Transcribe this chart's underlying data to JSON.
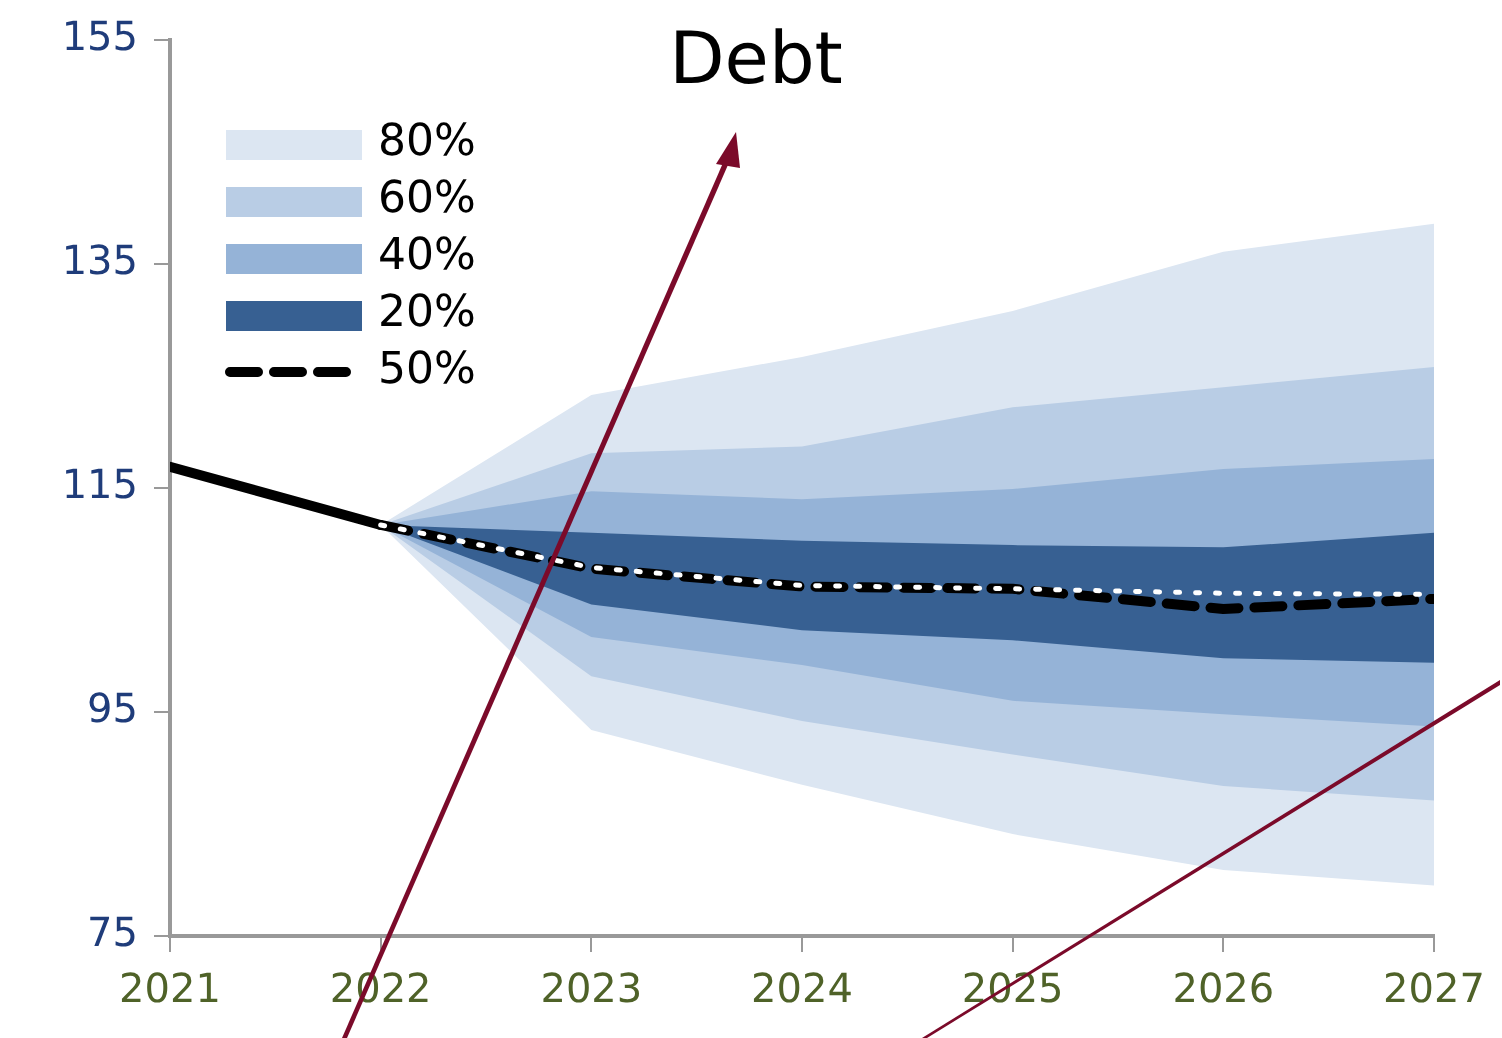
{
  "chart_data": {
    "type": "line",
    "title": "Debt",
    "xlim": [
      2021,
      2027
    ],
    "xticks": [
      2021,
      2022,
      2023,
      2024,
      2025,
      2026,
      2027
    ],
    "ylim": [
      75,
      155
    ],
    "yticks": [
      75,
      95,
      115,
      135,
      155
    ],
    "grid": false,
    "legend": "top left",
    "series": [
      {
        "name": "80%",
        "type": "area",
        "color": "#dce6f2",
        "x": [
          2022,
          2023,
          2024,
          2025,
          2026,
          2027
        ],
        "values": [
          null,
          null,
          null,
          null,
          null,
          null
        ],
        "lower": [
          111.7,
          93.4,
          88.5,
          84.1,
          80.9,
          79.5
        ],
        "upper": [
          111.7,
          123.3,
          126.7,
          130.8,
          136.1,
          138.6
        ]
      },
      {
        "name": "60%",
        "type": "area",
        "color": "#b9cde5",
        "x": [
          2022,
          2023,
          2024,
          2025,
          2026,
          2027
        ],
        "values": [
          null,
          null,
          null,
          null,
          null,
          null
        ],
        "lower": [
          111.7,
          98.2,
          94.2,
          91.2,
          88.4,
          87.1
        ],
        "upper": [
          111.7,
          118.1,
          118.7,
          122.2,
          124.0,
          125.8
        ]
      },
      {
        "name": "40%",
        "type": "area",
        "color": "#95b3d7",
        "x": [
          2022,
          2023,
          2024,
          2025,
          2026,
          2027
        ],
        "values": [
          null,
          null,
          null,
          null,
          null,
          null
        ],
        "lower": [
          111.7,
          101.7,
          99.2,
          96.0,
          94.8,
          93.7
        ],
        "upper": [
          111.7,
          114.7,
          114.0,
          114.9,
          116.7,
          117.6
        ]
      },
      {
        "name": "20%",
        "type": "area",
        "color": "#376092",
        "x": [
          2022,
          2023,
          2024,
          2025,
          2026,
          2027
        ],
        "values": [
          null,
          null,
          null,
          null,
          null,
          null
        ],
        "lower": [
          111.7,
          104.6,
          102.3,
          101.4,
          99.8,
          99.4
        ],
        "upper": [
          111.7,
          111.0,
          110.3,
          109.9,
          109.7,
          111.0
        ]
      },
      {
        "color": "#000000",
        "line_style": "solid",
        "x": [
          2021,
          2022
        ],
        "values": [
          116.9,
          111.7
        ]
      },
      {
        "name": "50%",
        "color": "#000000",
        "line_style": "dashed",
        "x": [
          2022,
          2023,
          2024,
          2025,
          2026,
          2027
        ],
        "values": [
          111.7,
          107.8,
          106.2,
          106.0,
          104.2,
          105.1
        ]
      },
      {
        "color": "#ffffff",
        "line_style": "dotted",
        "x": [
          2022,
          2023,
          2024,
          2025,
          2026,
          2027
        ],
        "values": [
          111.7,
          107.9,
          106.3,
          106.0,
          105.6,
          105.5
        ]
      }
    ]
  }
}
